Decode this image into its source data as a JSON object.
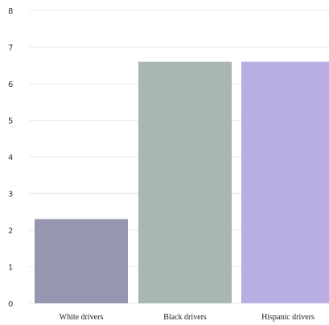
{
  "chart_data": {
    "type": "bar",
    "categories": [
      "White drivers",
      "Black drivers",
      "Hispanic drivers"
    ],
    "values": [
      2.3,
      6.6,
      6.6
    ],
    "colors": [
      "#9696b0",
      "#a9b7b2",
      "#b8aee3"
    ],
    "yticks": [
      "0",
      "1",
      "2",
      "3",
      "4",
      "5",
      "6",
      "7",
      "8"
    ],
    "ylim": [
      0,
      8
    ],
    "grid": true
  }
}
